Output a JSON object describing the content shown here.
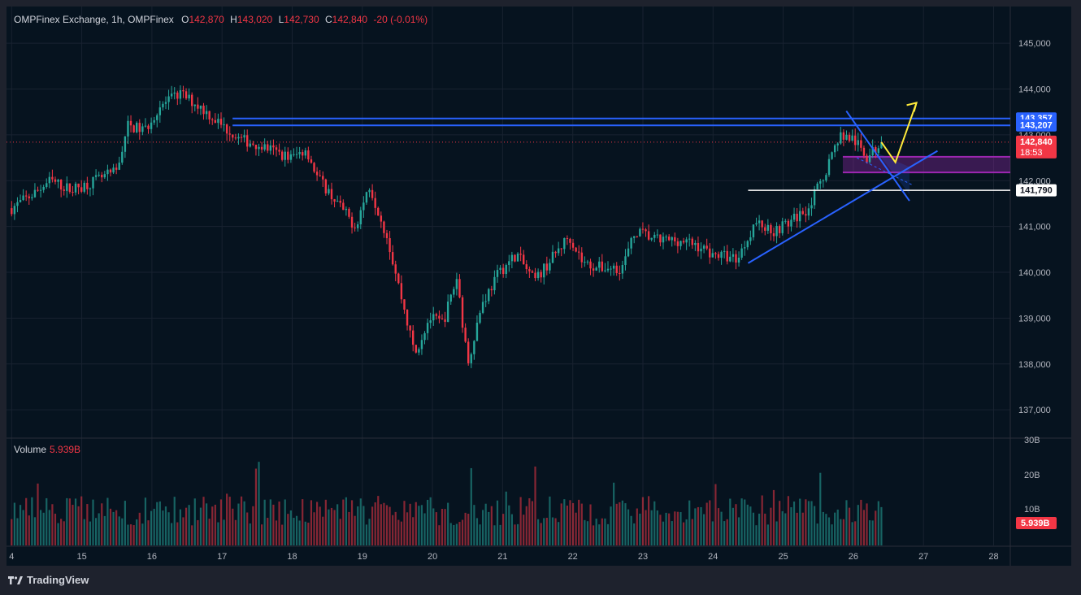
{
  "header": {
    "symbol": "OMPFinex Exchange, 1h, OMPFinex",
    "o_label": "O",
    "o_value": "142,870",
    "h_label": "H",
    "h_value": "143,020",
    "l_label": "L",
    "l_value": "142,730",
    "c_label": "C",
    "c_value": "142,840",
    "change": "-20 (-0.01%)"
  },
  "volume_legend": {
    "label": "Volume",
    "value": "5.939B"
  },
  "footer": {
    "brand": "TradingView"
  },
  "colors": {
    "up": "#26a69a",
    "down": "#f23645",
    "background": "#06131f",
    "blue_line": "#2962ff",
    "purple_zone": "#9c27b0",
    "yellow_arrow": "#ffeb3b"
  },
  "chart_data": {
    "type": "candlestick",
    "interval": "1h",
    "x_ticks": [
      "4",
      "15",
      "16",
      "17",
      "18",
      "19",
      "20",
      "21",
      "22",
      "23",
      "24",
      "25",
      "26",
      "27",
      "28"
    ],
    "y_ticks": [
      "145,000",
      "144,000",
      "143,000",
      "142,000",
      "141,000",
      "140,000",
      "139,000",
      "138,000",
      "137,000"
    ],
    "y_range": [
      136400,
      145800
    ],
    "volume_ticks": [
      "30B",
      "20B",
      "10B"
    ],
    "price_labels": [
      {
        "value": "143,357",
        "color": "#2962ff"
      },
      {
        "value": "143,207",
        "color": "#2962ff"
      },
      {
        "value": "142,840",
        "sub": "18:53",
        "color": "#f23645"
      },
      {
        "value": "141,790",
        "color": "#ffffff"
      }
    ],
    "current_volume_label": "5.939B",
    "price_path": [
      {
        "day": 14.0,
        "price": 141400
      },
      {
        "day": 14.3,
        "price": 141700
      },
      {
        "day": 14.55,
        "price": 142000
      },
      {
        "day": 14.85,
        "price": 141800
      },
      {
        "day": 15.2,
        "price": 142000
      },
      {
        "day": 15.5,
        "price": 142200
      },
      {
        "day": 15.65,
        "price": 143200
      },
      {
        "day": 15.9,
        "price": 143100
      },
      {
        "day": 16.1,
        "price": 143600
      },
      {
        "day": 16.4,
        "price": 143900
      },
      {
        "day": 16.7,
        "price": 143600
      },
      {
        "day": 17.0,
        "price": 143200
      },
      {
        "day": 17.25,
        "price": 142900
      },
      {
        "day": 17.5,
        "price": 142800
      },
      {
        "day": 17.8,
        "price": 142600
      },
      {
        "day": 18.0,
        "price": 142500
      },
      {
        "day": 18.2,
        "price": 142700
      },
      {
        "day": 18.35,
        "price": 142100
      },
      {
        "day": 18.6,
        "price": 141600
      },
      {
        "day": 18.9,
        "price": 141000
      },
      {
        "day": 19.1,
        "price": 141900
      },
      {
        "day": 19.35,
        "price": 140800
      },
      {
        "day": 19.55,
        "price": 139500
      },
      {
        "day": 19.75,
        "price": 138200
      },
      {
        "day": 19.95,
        "price": 139000
      },
      {
        "day": 20.15,
        "price": 138900
      },
      {
        "day": 20.35,
        "price": 139900
      },
      {
        "day": 20.5,
        "price": 138000
      },
      {
        "day": 20.7,
        "price": 139300
      },
      {
        "day": 20.95,
        "price": 140000
      },
      {
        "day": 21.2,
        "price": 140400
      },
      {
        "day": 21.45,
        "price": 139800
      },
      {
        "day": 21.7,
        "price": 140300
      },
      {
        "day": 21.95,
        "price": 140800
      },
      {
        "day": 22.15,
        "price": 140200
      },
      {
        "day": 22.4,
        "price": 140100
      },
      {
        "day": 22.7,
        "price": 140100
      },
      {
        "day": 22.9,
        "price": 140900
      },
      {
        "day": 23.2,
        "price": 140700
      },
      {
        "day": 23.5,
        "price": 140700
      },
      {
        "day": 23.75,
        "price": 140600
      },
      {
        "day": 24.0,
        "price": 140400
      },
      {
        "day": 24.35,
        "price": 140300
      },
      {
        "day": 24.6,
        "price": 141100
      },
      {
        "day": 24.85,
        "price": 140900
      },
      {
        "day": 25.1,
        "price": 141100
      },
      {
        "day": 25.35,
        "price": 141400
      },
      {
        "day": 25.55,
        "price": 142000
      },
      {
        "day": 25.8,
        "price": 143000
      },
      {
        "day": 26.0,
        "price": 142900
      },
      {
        "day": 26.2,
        "price": 142500
      },
      {
        "day": 26.4,
        "price": 142840
      }
    ],
    "drawings": {
      "resistance_lines": [
        143357,
        143207
      ],
      "support_line": 141790,
      "purple_zone": [
        142180,
        142520
      ],
      "channel_upper": [
        {
          "day": 25.9,
          "price": 143520
        },
        {
          "day": 26.8,
          "price": 141560
        }
      ],
      "channel_lower": [
        {
          "day": 24.5,
          "price": 140200
        },
        {
          "day": 27.2,
          "price": 142650
        }
      ],
      "projection": [
        {
          "day": 26.4,
          "price": 142840
        },
        {
          "day": 26.6,
          "price": 142400
        },
        {
          "day": 26.9,
          "price": 143700
        }
      ]
    }
  }
}
